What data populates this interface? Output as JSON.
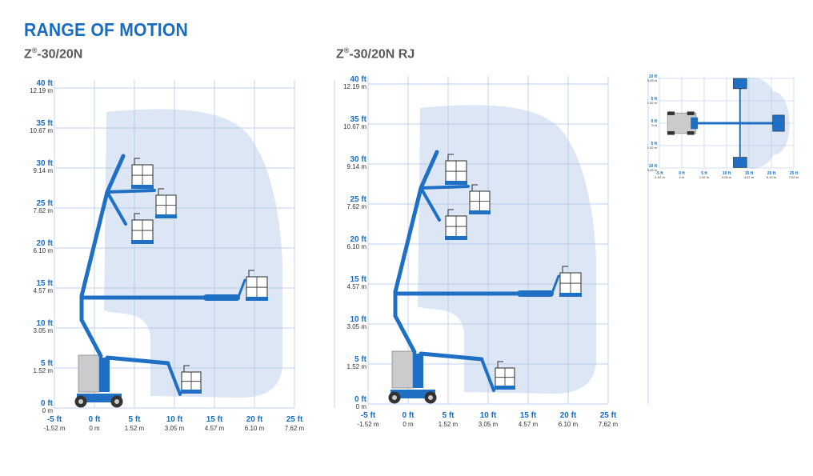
{
  "page_title": "RANGE OF MOTION",
  "charts": [
    {
      "id": "z30-20n",
      "model": "Z",
      "reg": "®",
      "model_suffix": "-30/20N",
      "y_ticks": [
        {
          "ft": "0 ft",
          "m": "0 m"
        },
        {
          "ft": "5 ft",
          "m": "1.52 m"
        },
        {
          "ft": "10 ft",
          "m": "3.05 m"
        },
        {
          "ft": "15 ft",
          "m": "4.57 m"
        },
        {
          "ft": "20 ft",
          "m": "6.10 m"
        },
        {
          "ft": "25 ft",
          "m": "7.62 m"
        },
        {
          "ft": "30 ft",
          "m": "9.14 m"
        },
        {
          "ft": "35 ft",
          "m": "10.67 m"
        },
        {
          "ft": "40 ft",
          "m": "12.19 m"
        }
      ],
      "x_ticks": [
        {
          "ft": "-5 ft",
          "m": "-1.52 m"
        },
        {
          "ft": "0 ft",
          "m": "0 m"
        },
        {
          "ft": "5 ft",
          "m": "1.52 m"
        },
        {
          "ft": "10 ft",
          "m": "3.05 m"
        },
        {
          "ft": "15 ft",
          "m": "4.57 m"
        },
        {
          "ft": "20 ft",
          "m": "6.10 m"
        },
        {
          "ft": "25 ft",
          "m": "7.62 m"
        }
      ]
    },
    {
      "id": "z30-20n-rj",
      "model": "Z",
      "reg": "®",
      "model_suffix": "-30/20N RJ",
      "y_ticks": [
        {
          "ft": "0 ft",
          "m": "0 m"
        },
        {
          "ft": "5 ft",
          "m": "1.52 m"
        },
        {
          "ft": "10 ft",
          "m": "3.05 m"
        },
        {
          "ft": "15 ft",
          "m": "4.57 m"
        },
        {
          "ft": "20 ft",
          "m": "6.10 m"
        },
        {
          "ft": "25 ft",
          "m": "7.62 m"
        },
        {
          "ft": "30 ft",
          "m": "9.14 m"
        },
        {
          "ft": "35 ft",
          "m": "10.67 m"
        },
        {
          "ft": "40 ft",
          "m": "12.19 m"
        }
      ],
      "x_ticks": [
        {
          "ft": "-5 ft",
          "m": "-1.52 m"
        },
        {
          "ft": "0 ft",
          "m": "0 m"
        },
        {
          "ft": "5 ft",
          "m": "1.52 m"
        },
        {
          "ft": "10 ft",
          "m": "3.05 m"
        },
        {
          "ft": "15 ft",
          "m": "4.57 m"
        },
        {
          "ft": "20 ft",
          "m": "6.10 m"
        },
        {
          "ft": "25 ft",
          "m": "7.62 m"
        }
      ]
    }
  ],
  "top_view": {
    "y_ticks": [
      {
        "ft": "10 ft",
        "m": "3.05 m"
      },
      {
        "ft": "5 ft",
        "m": "1.52 m"
      },
      {
        "ft": "0 ft",
        "m": "0 m"
      },
      {
        "ft": "5 ft",
        "m": "1.52 m"
      },
      {
        "ft": "10 ft",
        "m": "3.05 m"
      }
    ],
    "x_ticks": [
      {
        "ft": "-5 ft",
        "m": "-1.52 m"
      },
      {
        "ft": "0 ft",
        "m": "0 m"
      },
      {
        "ft": "5 ft",
        "m": "1.52 m"
      },
      {
        "ft": "10 ft",
        "m": "3.05 m"
      },
      {
        "ft": "15 ft",
        "m": "4.57 m"
      },
      {
        "ft": "20 ft",
        "m": "6.10 m"
      },
      {
        "ft": "25 ft",
        "m": "7.62 m"
      }
    ]
  },
  "colors": {
    "title_blue": "#1a6dbe",
    "boom_blue": "#1f6fc4",
    "envelope": "#dde6f4",
    "grid": "#a9c3e6",
    "platform_fill": "#ffffff",
    "base_gray": "#c9cbcd",
    "tire": "#333333"
  }
}
